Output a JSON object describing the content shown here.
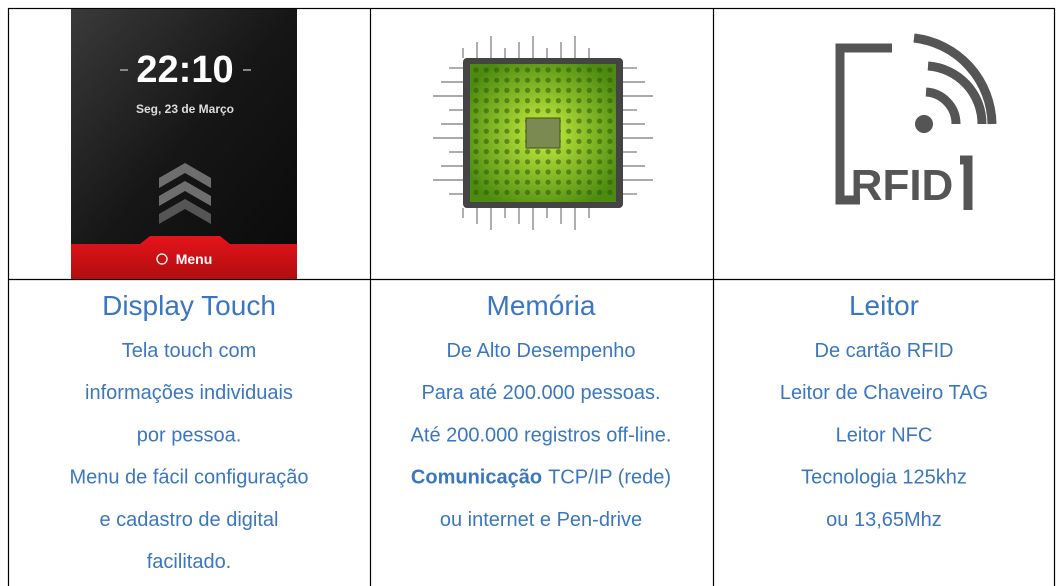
{
  "columns": [
    {
      "image": {
        "time": "22:10",
        "date": "Seg, 23 de Março",
        "button": "Menu"
      },
      "title": "Display Touch",
      "lines": [
        "Tela touch com",
        "informações  individuais",
        "por pessoa.",
        "Menu de fácil configuração",
        "e cadastro de digital",
        "facilitado."
      ]
    },
    {
      "title": "Memória",
      "lines": [
        "De Alto Desempenho",
        "Para até 200.000 pessoas.",
        "Até 200.000 registros off-line.",
        {
          "strong": "Comunicação",
          "rest": "TCP/IP (rede)"
        },
        "ou internet e Pen-drive"
      ]
    },
    {
      "image": {
        "label": "RFID"
      },
      "title": "Leitor",
      "lines": [
        "De cartão RFID",
        "Leitor de Chaveiro TAG",
        "Leitor NFC",
        "Tecnologia 125khz",
        "ou 13,65Mhz"
      ]
    }
  ]
}
